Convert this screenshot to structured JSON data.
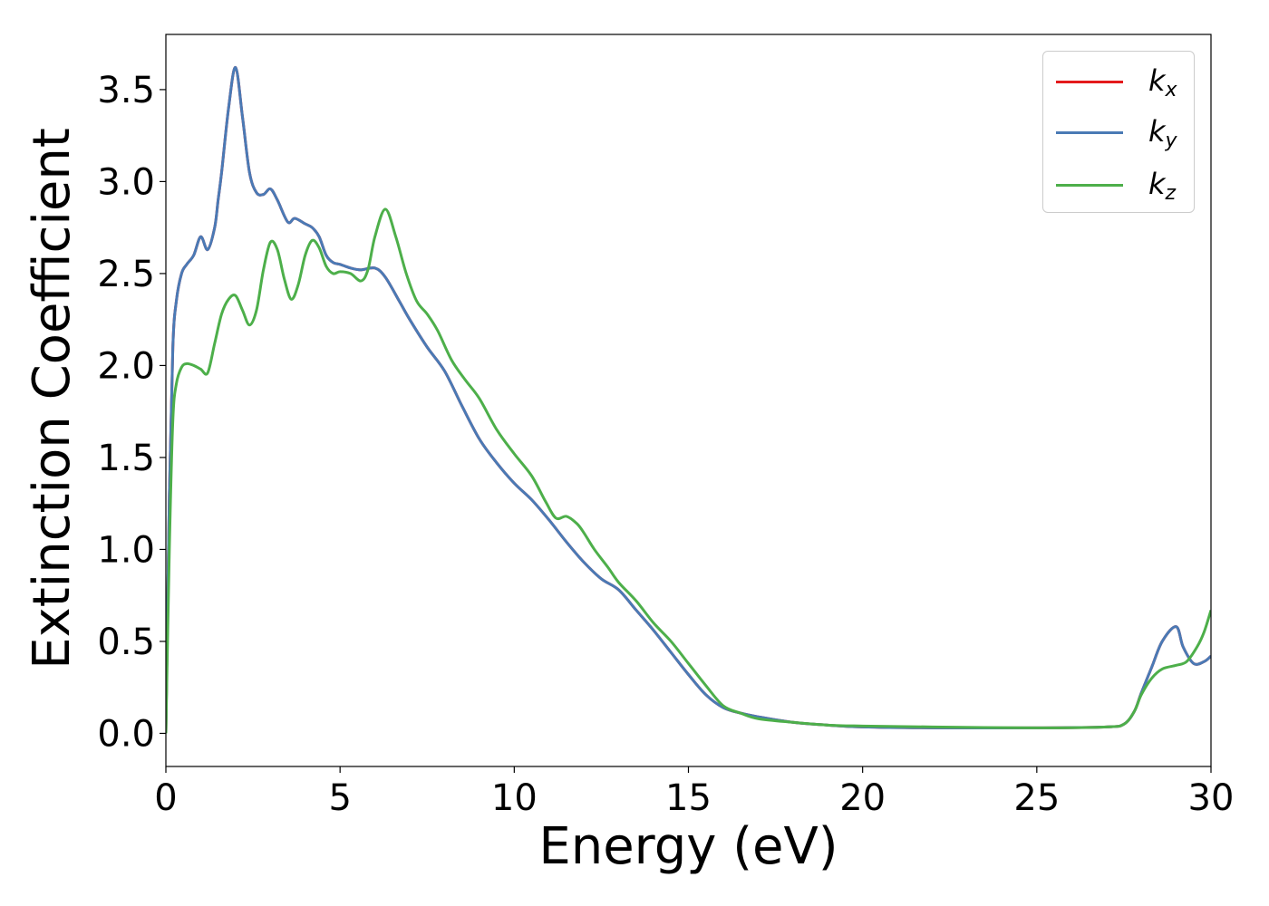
{
  "chart_data": {
    "type": "line",
    "xlabel": "Energy (eV)",
    "ylabel": "Extinction Coefficient",
    "xlim": [
      0,
      30
    ],
    "ylim": [
      -0.18,
      3.8
    ],
    "xticks": [
      0,
      5,
      10,
      15,
      20,
      25,
      30
    ],
    "xtick_labels": [
      "0",
      "5",
      "10",
      "15",
      "20",
      "25",
      "30"
    ],
    "yticks": [
      0.0,
      0.5,
      1.0,
      1.5,
      2.0,
      2.5,
      3.0,
      3.5
    ],
    "ytick_labels": [
      "0.0",
      "0.5",
      "1.0",
      "1.5",
      "2.0",
      "2.5",
      "3.0",
      "3.5"
    ],
    "grid": false,
    "legend_position": "top-right",
    "series": [
      {
        "name": "k_x",
        "label_base": "k",
        "label_sub": "x",
        "color": "#e41a1c",
        "x": [
          0,
          0.1,
          0.2,
          0.3,
          0.45,
          0.6,
          0.8,
          1.0,
          1.2,
          1.4,
          1.5,
          1.6,
          1.8,
          2.0,
          2.2,
          2.4,
          2.6,
          2.8,
          3.0,
          3.2,
          3.5,
          3.7,
          4.0,
          4.2,
          4.4,
          4.6,
          4.8,
          5.0,
          5.3,
          5.6,
          6.0,
          6.3,
          6.7,
          7.0,
          7.5,
          8.0,
          8.5,
          9.0,
          9.5,
          10.0,
          10.5,
          11.0,
          11.5,
          12.0,
          12.5,
          13.0,
          13.5,
          14.0,
          14.5,
          15.0,
          15.5,
          16.0,
          16.5,
          17.0,
          18.0,
          19.0,
          20.0,
          22.0,
          25.0,
          27.0,
          27.5,
          27.8,
          28.0,
          28.3,
          28.6,
          29.0,
          29.2,
          29.5,
          29.8,
          30.0
        ],
        "values": [
          0.0,
          1.3,
          2.1,
          2.35,
          2.5,
          2.55,
          2.6,
          2.7,
          2.63,
          2.75,
          2.9,
          3.05,
          3.4,
          3.62,
          3.35,
          3.05,
          2.94,
          2.93,
          2.96,
          2.9,
          2.78,
          2.8,
          2.77,
          2.75,
          2.7,
          2.6,
          2.56,
          2.55,
          2.53,
          2.52,
          2.53,
          2.48,
          2.35,
          2.25,
          2.1,
          1.97,
          1.78,
          1.6,
          1.47,
          1.36,
          1.27,
          1.16,
          1.04,
          0.93,
          0.84,
          0.78,
          0.67,
          0.56,
          0.44,
          0.32,
          0.21,
          0.14,
          0.11,
          0.09,
          0.06,
          0.045,
          0.035,
          0.03,
          0.03,
          0.035,
          0.05,
          0.12,
          0.22,
          0.36,
          0.5,
          0.58,
          0.47,
          0.38,
          0.39,
          0.42
        ]
      },
      {
        "name": "k_y",
        "label_base": "k",
        "label_sub": "y",
        "color": "#4a7ab5",
        "x": [
          0,
          0.1,
          0.2,
          0.3,
          0.45,
          0.6,
          0.8,
          1.0,
          1.2,
          1.4,
          1.5,
          1.6,
          1.8,
          2.0,
          2.2,
          2.4,
          2.6,
          2.8,
          3.0,
          3.2,
          3.5,
          3.7,
          4.0,
          4.2,
          4.4,
          4.6,
          4.8,
          5.0,
          5.3,
          5.6,
          6.0,
          6.3,
          6.7,
          7.0,
          7.5,
          8.0,
          8.5,
          9.0,
          9.5,
          10.0,
          10.5,
          11.0,
          11.5,
          12.0,
          12.5,
          13.0,
          13.5,
          14.0,
          14.5,
          15.0,
          15.5,
          16.0,
          16.5,
          17.0,
          18.0,
          19.0,
          20.0,
          22.0,
          25.0,
          27.0,
          27.5,
          27.8,
          28.0,
          28.3,
          28.6,
          29.0,
          29.2,
          29.5,
          29.8,
          30.0
        ],
        "values": [
          0.0,
          1.3,
          2.1,
          2.35,
          2.5,
          2.55,
          2.6,
          2.7,
          2.63,
          2.75,
          2.9,
          3.05,
          3.4,
          3.62,
          3.35,
          3.05,
          2.94,
          2.93,
          2.96,
          2.9,
          2.78,
          2.8,
          2.77,
          2.75,
          2.7,
          2.6,
          2.56,
          2.55,
          2.53,
          2.52,
          2.53,
          2.48,
          2.35,
          2.25,
          2.1,
          1.97,
          1.78,
          1.6,
          1.47,
          1.36,
          1.27,
          1.16,
          1.04,
          0.93,
          0.84,
          0.78,
          0.67,
          0.56,
          0.44,
          0.32,
          0.21,
          0.14,
          0.11,
          0.09,
          0.06,
          0.045,
          0.035,
          0.03,
          0.03,
          0.035,
          0.05,
          0.12,
          0.22,
          0.36,
          0.5,
          0.58,
          0.47,
          0.38,
          0.39,
          0.42
        ]
      },
      {
        "name": "k_z",
        "label_base": "k",
        "label_sub": "z",
        "color": "#4daf4a",
        "x": [
          0,
          0.1,
          0.2,
          0.3,
          0.45,
          0.6,
          0.8,
          1.0,
          1.2,
          1.4,
          1.6,
          1.8,
          2.0,
          2.2,
          2.4,
          2.6,
          2.8,
          3.0,
          3.2,
          3.4,
          3.6,
          3.8,
          4.0,
          4.2,
          4.4,
          4.6,
          4.8,
          5.0,
          5.3,
          5.6,
          5.8,
          6.0,
          6.3,
          6.6,
          6.9,
          7.2,
          7.5,
          7.8,
          8.2,
          8.6,
          9.0,
          9.5,
          10.0,
          10.5,
          10.9,
          11.2,
          11.5,
          11.8,
          12.0,
          12.3,
          12.7,
          13.0,
          13.5,
          14.0,
          14.5,
          15.0,
          15.5,
          16.0,
          16.5,
          17.0,
          18.0,
          19.0,
          20.0,
          22.0,
          25.0,
          27.0,
          27.5,
          27.8,
          28.0,
          28.3,
          28.6,
          29.0,
          29.3,
          29.6,
          29.8,
          30.0
        ],
        "values": [
          0.0,
          1.0,
          1.7,
          1.9,
          1.99,
          2.01,
          2.0,
          1.98,
          1.96,
          2.12,
          2.28,
          2.36,
          2.38,
          2.3,
          2.22,
          2.3,
          2.52,
          2.67,
          2.63,
          2.47,
          2.36,
          2.44,
          2.6,
          2.68,
          2.64,
          2.54,
          2.5,
          2.51,
          2.5,
          2.46,
          2.52,
          2.7,
          2.85,
          2.7,
          2.5,
          2.35,
          2.28,
          2.19,
          2.03,
          1.92,
          1.82,
          1.65,
          1.52,
          1.4,
          1.26,
          1.17,
          1.18,
          1.14,
          1.09,
          1.0,
          0.9,
          0.82,
          0.72,
          0.6,
          0.5,
          0.38,
          0.26,
          0.15,
          0.11,
          0.08,
          0.06,
          0.045,
          0.04,
          0.035,
          0.03,
          0.035,
          0.05,
          0.12,
          0.21,
          0.3,
          0.35,
          0.37,
          0.39,
          0.47,
          0.55,
          0.67
        ]
      }
    ]
  }
}
